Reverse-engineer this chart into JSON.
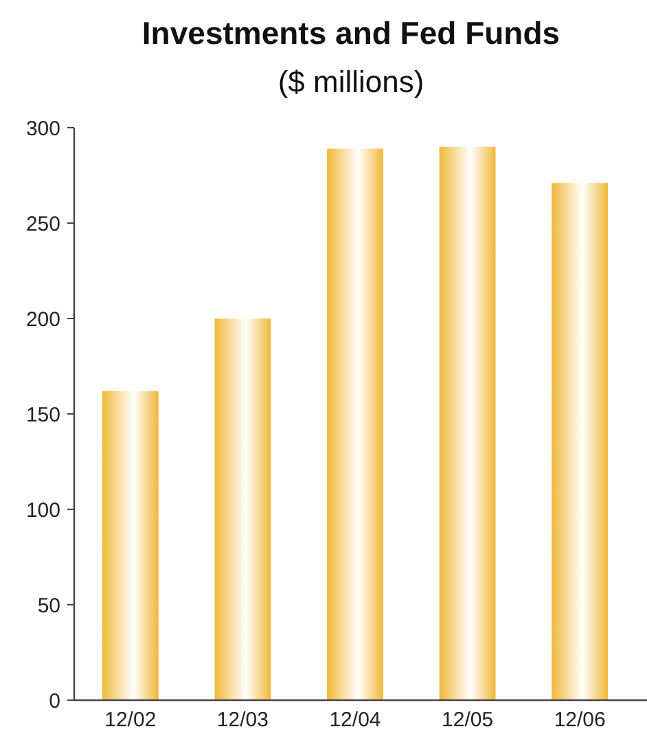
{
  "chart_data": {
    "type": "bar",
    "title": "Investments and Fed Funds",
    "subtitle": "($ millions)",
    "categories": [
      "12/02",
      "12/03",
      "12/04",
      "12/05",
      "12/06"
    ],
    "values": [
      162,
      200,
      289,
      290,
      271
    ],
    "color": "#f0b93a",
    "ylim": [
      0,
      300
    ],
    "yticks": [
      0,
      50,
      100,
      150,
      200,
      250,
      300
    ],
    "grid": false
  }
}
